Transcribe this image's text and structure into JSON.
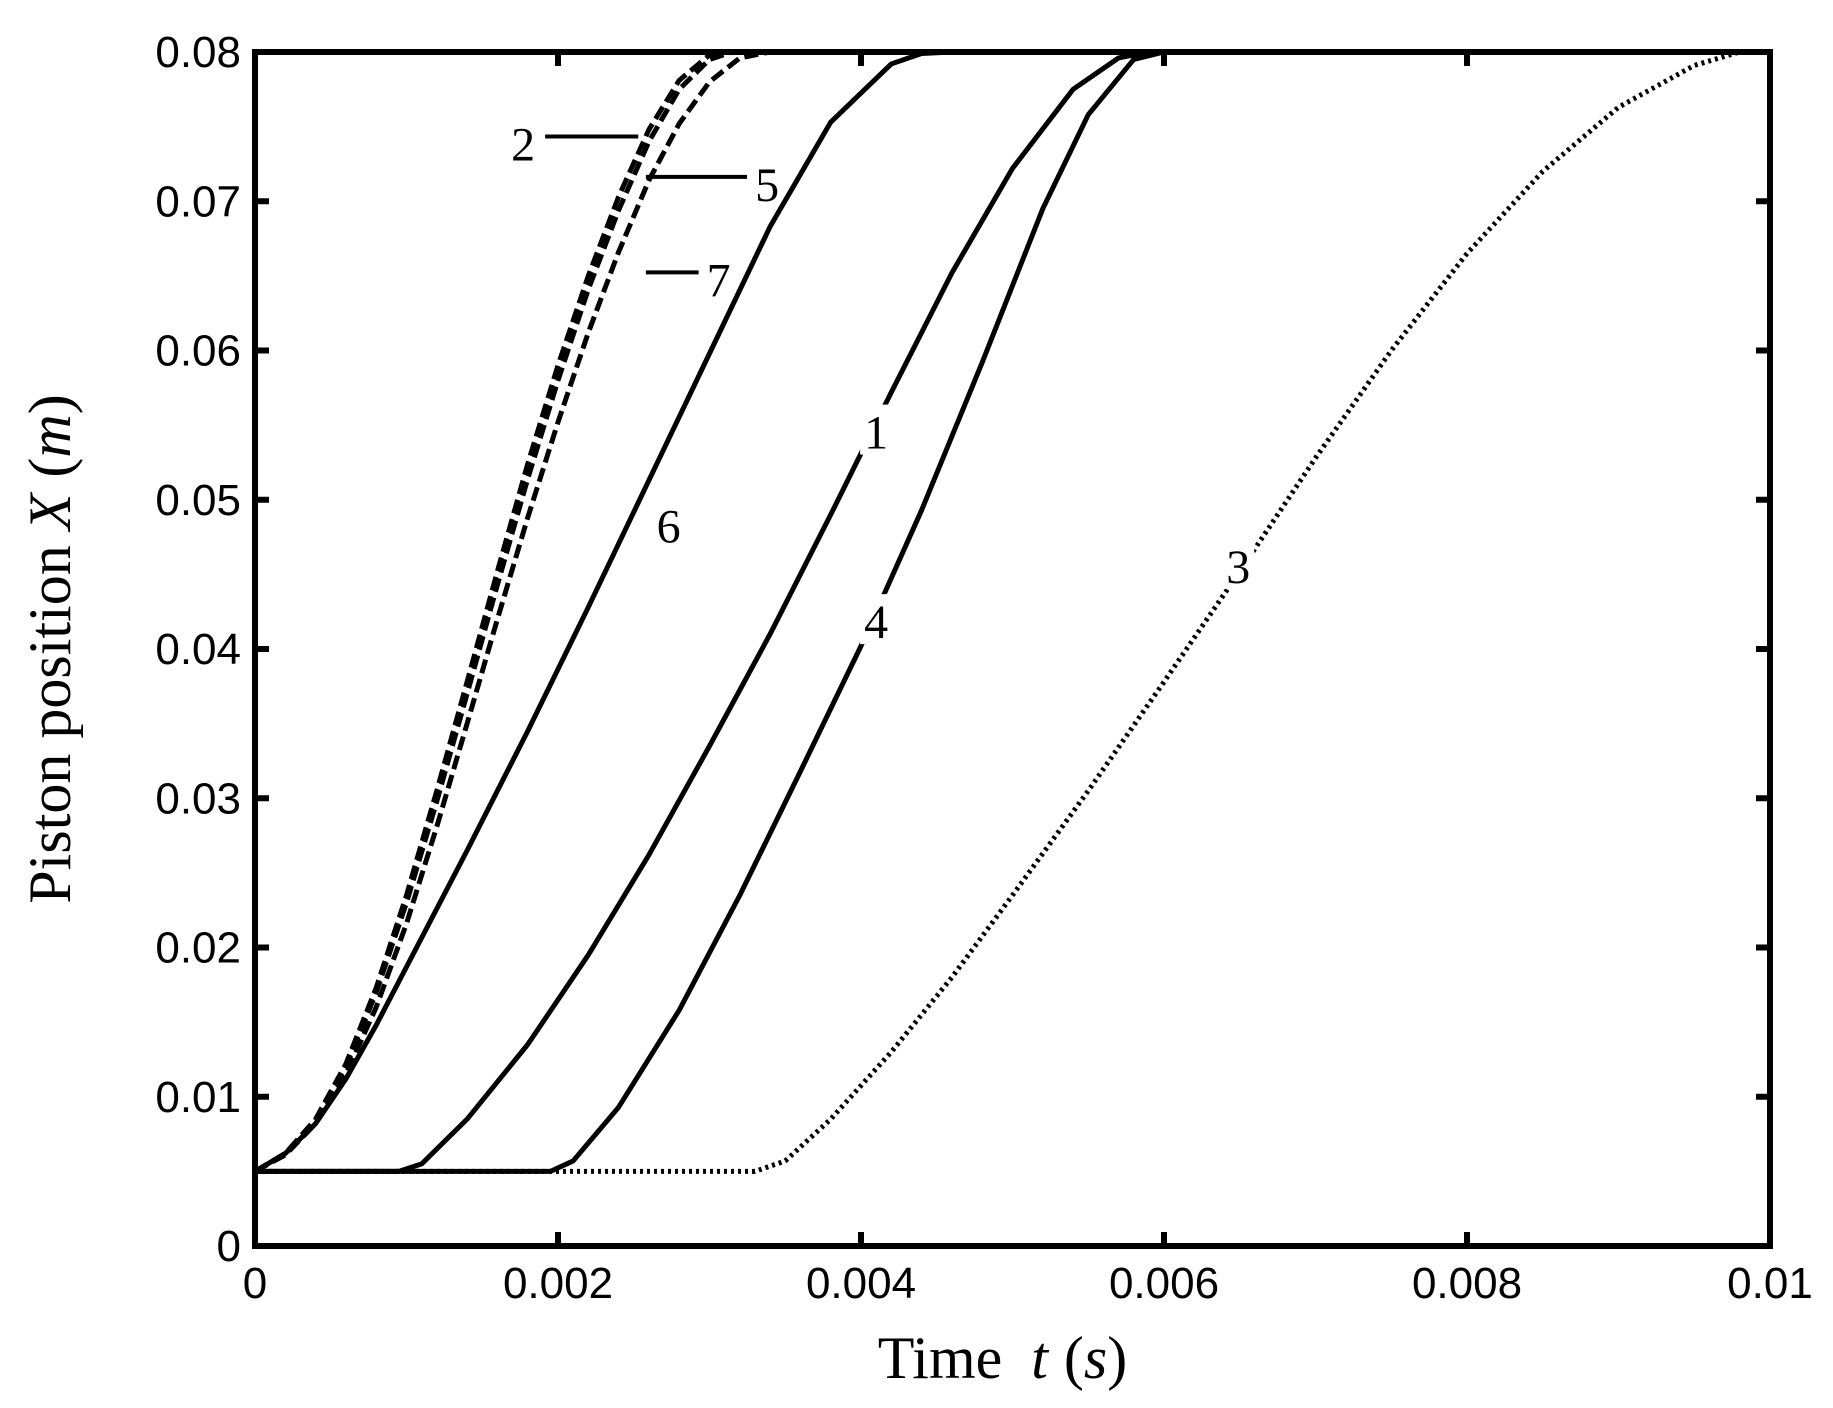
{
  "chart_data": {
    "type": "line",
    "title": "",
    "xlabel": {
      "prefix": "Time ",
      "var": "t",
      "unit": "s"
    },
    "ylabel": {
      "prefix": "Piston position ",
      "var": "X",
      "unit": "m"
    },
    "xlim": [
      0,
      0.01
    ],
    "ylim": [
      0,
      0.08
    ],
    "grid": false,
    "legend": "none (inline curve labels)",
    "xticks": [
      {
        "value": 0,
        "label": "0"
      },
      {
        "value": 0.002,
        "label": "0.002"
      },
      {
        "value": 0.004,
        "label": "0.004"
      },
      {
        "value": 0.006,
        "label": "0.006"
      },
      {
        "value": 0.008,
        "label": "0.008"
      },
      {
        "value": 0.01,
        "label": "0.01"
      }
    ],
    "yticks": [
      {
        "value": 0,
        "label": "0"
      },
      {
        "value": 0.01,
        "label": "0.01"
      },
      {
        "value": 0.02,
        "label": "0.02"
      },
      {
        "value": 0.03,
        "label": "0.03"
      },
      {
        "value": 0.04,
        "label": "0.04"
      },
      {
        "value": 0.05,
        "label": "0.05"
      },
      {
        "value": 0.06,
        "label": "0.06"
      },
      {
        "value": 0.07,
        "label": "0.07"
      },
      {
        "value": 0.08,
        "label": "0.08"
      }
    ],
    "series": [
      {
        "label": "1",
        "style": "solid",
        "x": [
          0,
          0.00095,
          0.0011,
          0.0014,
          0.0018,
          0.0022,
          0.0026,
          0.003,
          0.0034,
          0.0038,
          0.0042,
          0.0046,
          0.005,
          0.0054,
          0.0057,
          0.0059,
          0.006,
          0.01
        ],
        "y": [
          0.005,
          0.005,
          0.0055,
          0.0085,
          0.0135,
          0.0195,
          0.0262,
          0.0335,
          0.041,
          0.049,
          0.0572,
          0.0652,
          0.0722,
          0.0775,
          0.0796,
          0.08,
          0.08,
          0.08
        ]
      },
      {
        "label": "2",
        "style": "dashed",
        "x": [
          0,
          0.0002,
          0.0004,
          0.0006,
          0.0008,
          0.001,
          0.0012,
          0.0014,
          0.0016,
          0.0018,
          0.002,
          0.0022,
          0.0024,
          0.0026,
          0.0028,
          0.003,
          0.0031,
          0.01
        ],
        "y": [
          0.005,
          0.0062,
          0.0085,
          0.0122,
          0.0173,
          0.0235,
          0.0305,
          0.0378,
          0.0452,
          0.0524,
          0.059,
          0.065,
          0.0703,
          0.0748,
          0.0781,
          0.0798,
          0.08,
          0.08
        ]
      },
      {
        "label": "3",
        "style": "dotted",
        "x": [
          0,
          0.0033,
          0.0035,
          0.0038,
          0.0042,
          0.0046,
          0.005,
          0.0055,
          0.006,
          0.0065,
          0.007,
          0.0075,
          0.008,
          0.0085,
          0.009,
          0.0095,
          0.0098,
          0.01
        ],
        "y": [
          0.005,
          0.005,
          0.0057,
          0.0085,
          0.013,
          0.018,
          0.0235,
          0.0305,
          0.0378,
          0.0452,
          0.0528,
          0.06,
          0.0665,
          0.072,
          0.0763,
          0.0791,
          0.08,
          0.08
        ]
      },
      {
        "label": "4",
        "style": "solid",
        "x": [
          0,
          0.00195,
          0.0021,
          0.0024,
          0.0028,
          0.0032,
          0.0036,
          0.004,
          0.0044,
          0.0048,
          0.0052,
          0.0055,
          0.0058,
          0.006,
          0.01
        ],
        "y": [
          0.005,
          0.005,
          0.0057,
          0.0093,
          0.0158,
          0.0235,
          0.0318,
          0.0402,
          0.0493,
          0.0592,
          0.0695,
          0.0758,
          0.0795,
          0.08,
          0.08
        ]
      },
      {
        "label": "5",
        "style": "dashed",
        "x": [
          0,
          0.0002,
          0.0004,
          0.0006,
          0.0008,
          0.001,
          0.0012,
          0.0014,
          0.0016,
          0.0018,
          0.002,
          0.0022,
          0.0024,
          0.0026,
          0.0028,
          0.003,
          0.00315,
          0.01
        ],
        "y": [
          0.005,
          0.0062,
          0.0084,
          0.012,
          0.017,
          0.023,
          0.0298,
          0.037,
          0.0443,
          0.0514,
          0.058,
          0.0641,
          0.0694,
          0.074,
          0.0775,
          0.0795,
          0.08,
          0.08
        ]
      },
      {
        "label": "6",
        "style": "solid",
        "x": [
          0,
          0.0002,
          0.0004,
          0.0006,
          0.0008,
          0.001,
          0.0014,
          0.0018,
          0.0022,
          0.0026,
          0.003,
          0.0034,
          0.0038,
          0.0042,
          0.0044,
          0.0046,
          0.0047,
          0.01
        ],
        "y": [
          0.005,
          0.0062,
          0.0082,
          0.0112,
          0.0148,
          0.0187,
          0.0265,
          0.0345,
          0.0428,
          0.0513,
          0.0598,
          0.0683,
          0.0753,
          0.0792,
          0.0799,
          0.08,
          0.08,
          0.08
        ]
      },
      {
        "label": "7",
        "style": "dashed",
        "x": [
          0,
          0.0002,
          0.0004,
          0.0006,
          0.0008,
          0.001,
          0.0012,
          0.0014,
          0.0016,
          0.0018,
          0.002,
          0.0022,
          0.0024,
          0.0026,
          0.0028,
          0.003,
          0.0032,
          0.0034,
          0.01
        ],
        "y": [
          0.005,
          0.0061,
          0.0082,
          0.0115,
          0.016,
          0.0216,
          0.0281,
          0.035,
          0.042,
          0.0488,
          0.0552,
          0.0612,
          0.0666,
          0.0714,
          0.0752,
          0.078,
          0.0796,
          0.08,
          0.08
        ]
      }
    ],
    "annotations": [
      {
        "text": "1",
        "x": 0.0041,
        "y": 0.0545
      },
      {
        "text": "2",
        "x": 0.00177,
        "y": 0.0738,
        "leader_to_x": 0.00253
      },
      {
        "text": "3",
        "x": 0.00649,
        "y": 0.0455
      },
      {
        "text": "4",
        "x": 0.0041,
        "y": 0.0418
      },
      {
        "text": "5",
        "x": 0.00338,
        "y": 0.0711,
        "leader_from_x": 0.00258
      },
      {
        "text": "6",
        "x": 0.00273,
        "y": 0.0482
      },
      {
        "text": "7",
        "x": 0.00306,
        "y": 0.0647,
        "leader_from_x": 0.00258
      }
    ]
  }
}
